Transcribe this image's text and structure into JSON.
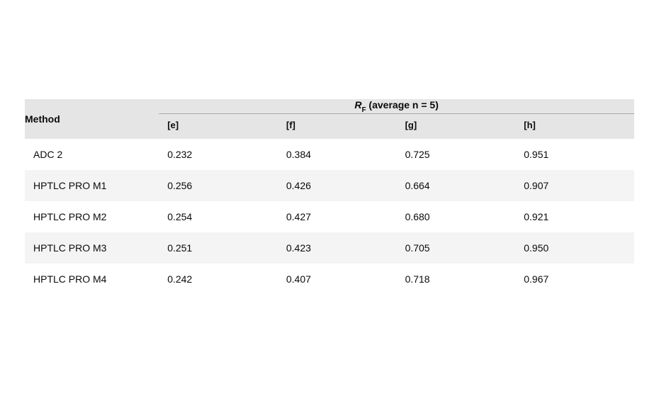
{
  "table": {
    "type": "table",
    "background_color": "#ffffff",
    "header_bg": "#e5e5e5",
    "row_stripe_bg": "#f4f4f4",
    "text_color": "#0a0a0a",
    "divider_color": "#aaaaaa",
    "font_family": "Helvetica Neue",
    "header_fontsize_pt": 11,
    "cell_fontsize_pt": 11,
    "method_header": "Method",
    "span_header_prefix_italic": "R",
    "span_header_sub": "F",
    "span_header_rest": " (average n = 5)",
    "columns": [
      "[e]",
      "[f]",
      "[g]",
      "[h]"
    ],
    "column_alignment": [
      "left",
      "left",
      "left",
      "left",
      "left"
    ],
    "rows": [
      {
        "method": "ADC 2",
        "values": [
          "0.232",
          "0.384",
          "0.725",
          "0.951"
        ]
      },
      {
        "method": "HPTLC PRO M1",
        "values": [
          "0.256",
          "0.426",
          "0.664",
          "0.907"
        ]
      },
      {
        "method": "HPTLC PRO M2",
        "values": [
          "0.254",
          "0.427",
          "0.680",
          "0.921"
        ]
      },
      {
        "method": "HPTLC PRO M3",
        "values": [
          "0.251",
          "0.423",
          "0.705",
          "0.950"
        ]
      },
      {
        "method": "HPTLC PRO M4",
        "values": [
          "0.242",
          "0.407",
          "0.718",
          "0.967"
        ]
      }
    ]
  }
}
